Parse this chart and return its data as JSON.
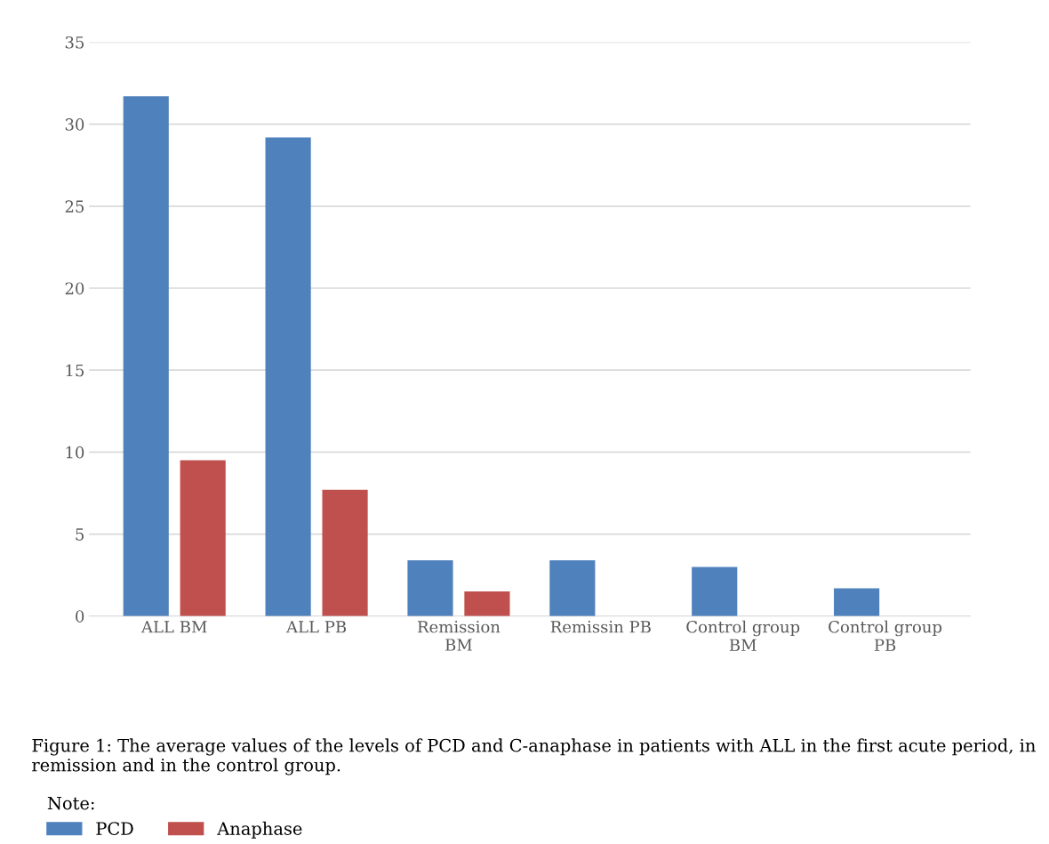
{
  "chart_data": {
    "type": "bar",
    "categories": [
      "ALL BM",
      "ALL PB",
      "Remission\nBM",
      "Remissin PB",
      "Control group\nBM",
      "Control group\nPB"
    ],
    "series": [
      {
        "name": "PCD",
        "color": "#4f81bd",
        "values": [
          31.7,
          29.2,
          3.4,
          3.4,
          3.0,
          1.7
        ]
      },
      {
        "name": "Anaphase",
        "color": "#c0504d",
        "values": [
          9.5,
          7.7,
          1.5,
          null,
          null,
          null
        ]
      }
    ],
    "ylim": [
      0,
      35
    ],
    "yticks": [
      0,
      5,
      10,
      15,
      20,
      25,
      30,
      35
    ],
    "grid": "y",
    "legend": "bottom",
    "legend_title": "Note:",
    "annotations": [
      "Figure 1: The average values of the levels of PCD and C-anaphase in patients with ALL in the first acute period, in remission and in the control group."
    ]
  }
}
